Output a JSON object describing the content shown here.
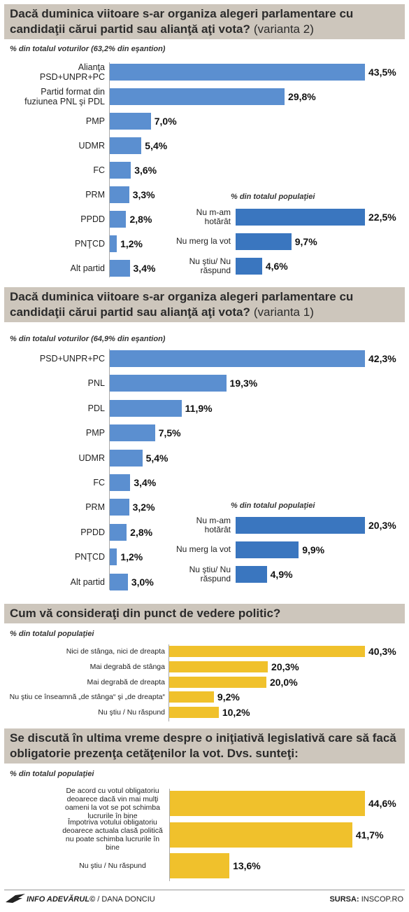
{
  "chart_data": [
    {
      "type": "bar",
      "orientation": "horizontal",
      "title": "Dacă duminica viitoare s-ar organiza alegeri parlamentare cu candidaţii cărui partid sau alianţă aţi vota?",
      "title_suffix": "(varianta 2)",
      "subtitle": "% din totalul voturilor (63,2% din eşantion)",
      "color": "#5b8fd0",
      "categories": [
        "Alianţa PSD+UNPR+PC",
        "Partid format din fuziunea PNL şi PDL",
        "PMP",
        "UDMR",
        "FC",
        "PRM",
        "PPDD",
        "PNŢCD",
        "Alt partid"
      ],
      "values": [
        43.5,
        29.8,
        7.0,
        5.4,
        3.6,
        3.3,
        2.8,
        1.2,
        3.4
      ],
      "value_labels": [
        "43,5%",
        "29,8%",
        "7,0%",
        "5,4%",
        "3,6%",
        "3,3%",
        "2,8%",
        "1,2%",
        "3,4%"
      ],
      "inset": {
        "subtitle": "% din totalul populaţiei",
        "color": "#3a76bf",
        "categories": [
          "Nu m-am hotărât",
          "Nu merg la vot",
          "Nu ştiu/ Nu răspund"
        ],
        "values": [
          22.5,
          9.7,
          4.6
        ],
        "value_labels": [
          "22,5%",
          "9,7%",
          "4,6%"
        ]
      }
    },
    {
      "type": "bar",
      "orientation": "horizontal",
      "title": "Dacă duminica viitoare s-ar organiza alegeri parlamentare cu candidaţii cărui partid sau alianţă aţi vota?",
      "title_suffix": "(varianta 1)",
      "subtitle": "% din totalul voturilor (64,9% din eşantion)",
      "color": "#5b8fd0",
      "categories": [
        "PSD+UNPR+PC",
        "PNL",
        "PDL",
        "PMP",
        "UDMR",
        "FC",
        "PRM",
        "PPDD",
        "PNŢCD",
        "Alt partid"
      ],
      "values": [
        42.3,
        19.3,
        11.9,
        7.5,
        5.4,
        3.4,
        3.2,
        2.8,
        1.2,
        3.0
      ],
      "value_labels": [
        "42,3%",
        "19,3%",
        "11,9%",
        "7,5%",
        "5,4%",
        "3,4%",
        "3,2%",
        "2,8%",
        "1,2%",
        "3,0%"
      ],
      "inset": {
        "subtitle": "% din totalul populaţiei",
        "color": "#3a76bf",
        "categories": [
          "Nu m-am hotărât",
          "Nu merg la vot",
          "Nu ştiu/ Nu răspund"
        ],
        "values": [
          20.3,
          9.9,
          4.9
        ],
        "value_labels": [
          "20,3%",
          "9,9%",
          "4,9%"
        ]
      }
    },
    {
      "type": "bar",
      "orientation": "horizontal",
      "title": "Cum vă consideraţi din punct de vedere politic?",
      "subtitle": "% din totalul populaţiei",
      "color": "#f0c12c",
      "categories": [
        "Nici de stânga, nici de dreapta",
        "Mai degrabă de stânga",
        "Mai degrabă de dreapta",
        "Nu ştiu ce înseamnă „de stânga“ şi „de dreapta“",
        "Nu ştiu / Nu răspund"
      ],
      "values": [
        40.3,
        20.3,
        20.0,
        9.2,
        10.2
      ],
      "value_labels": [
        "40,3%",
        "20,3%",
        "20,0%",
        "9,2%",
        "10,2%"
      ]
    },
    {
      "type": "bar",
      "orientation": "horizontal",
      "title": "Se discută în ultima vreme despre o iniţiativă legislativă care să facă obligatorie prezenţa cetăţenilor la vot. Dvs. sunteţi:",
      "subtitle": "% din totalul populaţiei",
      "color": "#f0c12c",
      "categories": [
        "De acord cu votul obligatoriu deoarece dacă vin mai mulţi oameni la vot se pot schimba lucrurile în bine",
        "Împotriva votului obligatoriu deoarece actuala clasă politică nu poate schimba lucrurile în bine",
        "Nu ştiu / Nu răspund"
      ],
      "values": [
        44.6,
        41.7,
        13.6
      ],
      "value_labels": [
        "44,6%",
        "41,7%",
        "13,6%"
      ]
    }
  ],
  "footer": {
    "brand": "INFO ADEVĂRUL©",
    "author": "/ DANA DONCIU",
    "source_label": "SURSA:",
    "source": "INSCOP.RO"
  }
}
